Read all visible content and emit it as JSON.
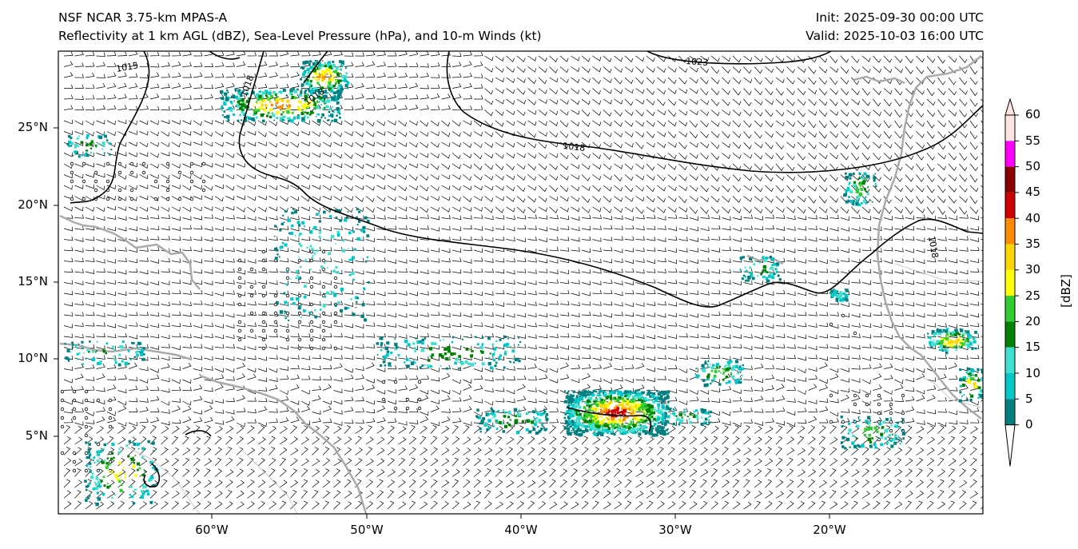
{
  "titles": {
    "left_line1": "NSF NCAR 3.75-km MPAS-A",
    "left_line2": "Reflectivity at 1 km AGL (dBZ), Sea-Level Pressure (hPa), and 10-m Winds (kt)",
    "right_line1": "Init: 2025-09-30 00:00 UTC",
    "right_line2": "Valid: 2025-10-03 16:00 UTC"
  },
  "map": {
    "lat_labels": [
      "25°N",
      "20°N",
      "15°N",
      "10°N",
      "5°N"
    ],
    "lon_labels": [
      "60°W",
      "50°W",
      "40°W",
      "30°W",
      "20°W"
    ],
    "isobar_labels": [
      "1018",
      "1018",
      "1018",
      "1023",
      "1015",
      "1018"
    ]
  },
  "colorbar": {
    "label": "[dBZ]",
    "ticks": [
      "60",
      "55",
      "50",
      "45",
      "40",
      "35",
      "30",
      "25",
      "20",
      "15",
      "10",
      "5",
      "0"
    ],
    "colors": [
      "#008080",
      "#00c8c8",
      "#40e0d0",
      "#008000",
      "#32cd32",
      "#ffff00",
      "#ffd700",
      "#ff8c00",
      "#cc0000",
      "#8b0000",
      "#ff00ff",
      "#ffe4e1"
    ]
  }
}
